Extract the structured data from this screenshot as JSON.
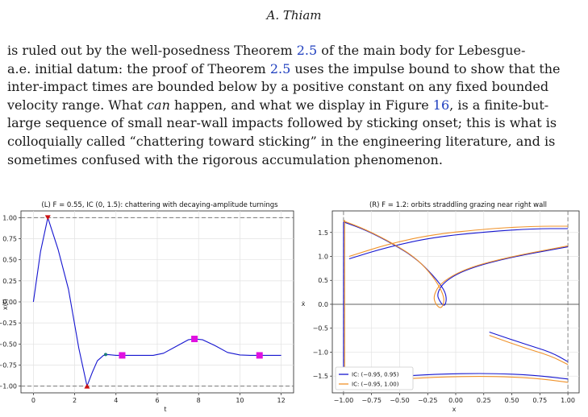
{
  "header": "A. Thiam",
  "paragraph": [
    [
      "is ruled out by the well-posedness Theorem ",
      {
        "ref": "2.5"
      },
      " of the main body for Lebesgue-"
    ],
    [
      "a.e. initial datum: the proof of Theorem ",
      {
        "ref": "2.5"
      },
      " uses the impulse bound to show that the"
    ],
    [
      "inter-impact times are bounded below by a positive constant on any fixed bounded"
    ],
    [
      "velocity range. What ",
      {
        "em": "can"
      },
      " happen, and what we display in Figure ",
      {
        "ref": "16"
      },
      ", is a finite-but-"
    ],
    [
      "large sequence of small near-wall impacts followed by sticking onset; this is what is"
    ],
    [
      "colloquially called “chattering toward sticking” in the engineering literature, and is"
    ],
    [
      "sometimes confused with the rigorous accumulation phenomenon."
    ]
  ],
  "chart_data": [
    {
      "type": "line",
      "title": "(L) F = 0.55, IC (0, 1.5): chattering with decaying-amplitude turnings",
      "xlabel": "t",
      "ylabel": "x(t)",
      "xlim": [
        -0.6,
        12.6
      ],
      "ylim": [
        -1.08,
        1.08
      ],
      "xticks": [
        "0",
        "2",
        "4",
        "6",
        "8",
        "10",
        "12"
      ],
      "yticks": [
        "1.00",
        "0.75",
        "0.50",
        "0.25",
        "0.00",
        "−0.25",
        "−0.50",
        "−0.75",
        "−1.00"
      ],
      "grid": true,
      "reference_lines_y": [
        1.0,
        -1.0
      ],
      "series": [
        {
          "color": "#1515d0",
          "points": [
            [
              0,
              0
            ],
            [
              0.35,
              0.6
            ],
            [
              0.7,
              1.0
            ],
            [
              1.2,
              0.62
            ],
            [
              1.7,
              0.15
            ],
            [
              2.2,
              -0.55
            ],
            [
              2.6,
              -1.0
            ],
            [
              2.85,
              -0.84
            ],
            [
              3.1,
              -0.7
            ],
            [
              3.4,
              -0.635
            ],
            [
              3.6,
              -0.625
            ],
            [
              4.0,
              -0.635
            ],
            [
              4.3,
              -0.635
            ],
            [
              5.0,
              -0.635
            ],
            [
              5.8,
              -0.635
            ],
            [
              6.3,
              -0.61
            ],
            [
              6.9,
              -0.53
            ],
            [
              7.5,
              -0.45
            ],
            [
              7.8,
              -0.44
            ],
            [
              8.2,
              -0.45
            ],
            [
              8.8,
              -0.52
            ],
            [
              9.4,
              -0.6
            ],
            [
              10.0,
              -0.63
            ],
            [
              10.5,
              -0.635
            ],
            [
              11.0,
              -0.635
            ],
            [
              12.0,
              -0.635
            ]
          ]
        }
      ],
      "markers": [
        {
          "x": 0.7,
          "y": 1.0,
          "shape": "triangle-down",
          "color": "#cc1111"
        },
        {
          "x": 2.6,
          "y": -1.0,
          "shape": "triangle-up",
          "color": "#cc1111"
        },
        {
          "x": 3.5,
          "y": -0.625,
          "shape": "dot",
          "color": "#1e7a7a"
        },
        {
          "x": 4.3,
          "y": -0.635,
          "shape": "square",
          "color": "#e010e0"
        },
        {
          "x": 7.8,
          "y": -0.44,
          "shape": "square",
          "color": "#e010e0"
        },
        {
          "x": 10.95,
          "y": -0.635,
          "shape": "square",
          "color": "#e010e0"
        }
      ]
    },
    {
      "type": "line",
      "title": "(R) F = 1.2: orbits straddling grazing near right wall",
      "xlabel": "x",
      "ylabel": "ẋ",
      "xlim": [
        -1.1,
        1.1
      ],
      "ylim": [
        -1.85,
        1.95
      ],
      "xticks": [
        "−1.00",
        "−0.75",
        "−0.50",
        "−0.25",
        "0.00",
        "0.25",
        "0.50",
        "0.75",
        "1.00"
      ],
      "yticks": [
        "1.5",
        "1.0",
        "0.5",
        "0.0",
        "−0.5",
        "−1.0",
        "−1.5"
      ],
      "grid": true,
      "reference_lines_x": [
        -1.0,
        1.0
      ],
      "legend_position": "lower-left",
      "series": [
        {
          "name": "IC: (−0.95, 0.95)",
          "color": "#1515d0",
          "segments": [
            [
              [
                -1.0,
                1.72
              ],
              [
                -0.8,
                1.55
              ],
              [
                -0.55,
                1.25
              ],
              [
                -0.35,
                0.95
              ],
              [
                -0.2,
                0.6
              ],
              [
                -0.1,
                0.3
              ],
              [
                -0.08,
                0.1
              ],
              [
                -0.1,
                -0.05
              ],
              [
                -0.14,
                0.05
              ],
              [
                -0.17,
                0.22
              ],
              [
                -0.1,
                0.48
              ],
              [
                0.1,
                0.74
              ],
              [
                0.5,
                0.99
              ],
              [
                1.0,
                1.2
              ]
            ],
            [
              [
                -0.95,
                0.95
              ],
              [
                -0.6,
                1.2
              ],
              [
                -0.2,
                1.4
              ],
              [
                0.3,
                1.52
              ],
              [
                0.7,
                1.58
              ],
              [
                1.0,
                1.58
              ]
            ],
            [
              [
                0.3,
                -0.58
              ],
              [
                0.6,
                -0.82
              ],
              [
                0.85,
                -1.0
              ],
              [
                1.0,
                -1.2
              ]
            ],
            [
              [
                -0.95,
                -1.65
              ],
              [
                -0.6,
                -1.52
              ],
              [
                -0.2,
                -1.46
              ],
              [
                0.3,
                -1.44
              ],
              [
                0.7,
                -1.48
              ],
              [
                1.0,
                -1.56
              ]
            ],
            [
              [
                -1.0,
                1.72
              ],
              [
                -1.0,
                -1.55
              ]
            ]
          ]
        },
        {
          "name": "IC: (−0.95, 1.00)",
          "color": "#f0922a",
          "segments": [
            [
              [
                -1.0,
                1.74
              ],
              [
                -0.8,
                1.56
              ],
              [
                -0.55,
                1.26
              ],
              [
                -0.35,
                0.96
              ],
              [
                -0.2,
                0.58
              ],
              [
                -0.12,
                0.26
              ],
              [
                -0.1,
                0.06
              ],
              [
                -0.13,
                -0.1
              ],
              [
                -0.18,
                0.0
              ],
              [
                -0.2,
                0.18
              ],
              [
                -0.13,
                0.46
              ],
              [
                0.1,
                0.76
              ],
              [
                0.5,
                1.0
              ],
              [
                1.0,
                1.22
              ]
            ],
            [
              [
                -0.95,
                1.0
              ],
              [
                -0.6,
                1.26
              ],
              [
                -0.2,
                1.46
              ],
              [
                0.3,
                1.58
              ],
              [
                0.7,
                1.63
              ],
              [
                1.0,
                1.63
              ]
            ],
            [
              [
                0.3,
                -0.65
              ],
              [
                0.6,
                -0.9
              ],
              [
                0.85,
                -1.08
              ],
              [
                1.0,
                -1.26
              ]
            ],
            [
              [
                -0.95,
                -1.72
              ],
              [
                -0.6,
                -1.58
              ],
              [
                -0.2,
                -1.52
              ],
              [
                0.3,
                -1.5
              ],
              [
                0.7,
                -1.54
              ],
              [
                1.0,
                -1.63
              ]
            ],
            [
              [
                -0.99,
                1.76
              ],
              [
                -0.99,
                -1.6
              ]
            ]
          ]
        }
      ],
      "reference_line_y0": true
    }
  ]
}
